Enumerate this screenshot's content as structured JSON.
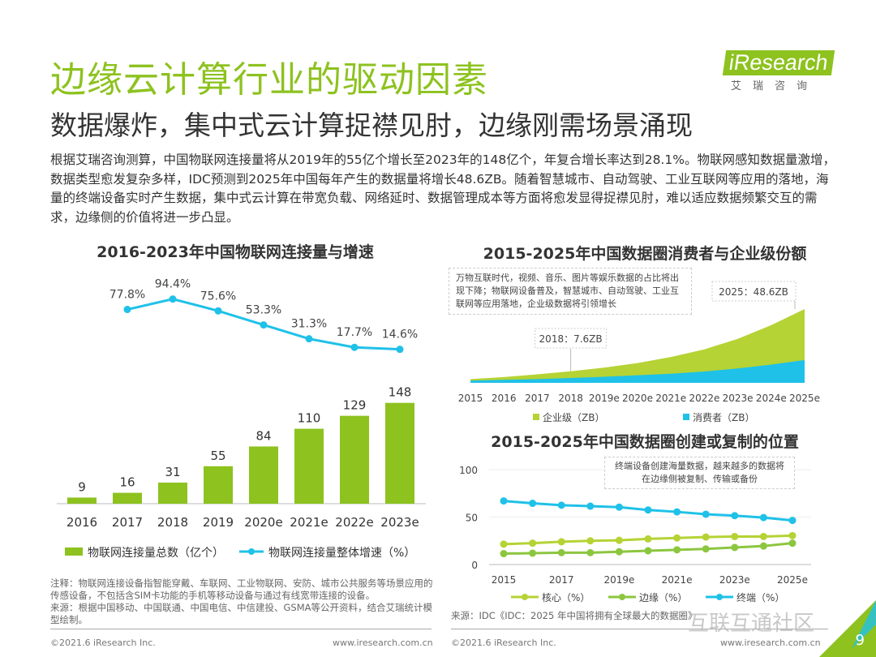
{
  "header": {
    "title": "边缘云计算行业的驱动因素",
    "subtitle": "数据爆炸，集中式云计算捉襟见肘，边缘刚需场景涌现"
  },
  "logo": {
    "main": "iResearch",
    "sub": "艾瑞咨询"
  },
  "paragraph": "根据艾瑞咨询测算，中国物联网连接量将从2019年的55亿个增长至2023年的148亿个，年复合增长率达到28.1%。物联网感知数据量激增，数据类型愈发复杂多样，IDC预测到2025年中国每年产生的数据量将增长48.6ZB。随着智慧城市、自动驾驶、工业互联网等应用的落地，海量的终端设备实时产生数据，集中式云计算在带宽负载、网络延时、数据管理成本等方面将愈发显得捉襟见肘，难以适应数据频繁交互的需求，边缘侧的价值将进一步凸显。",
  "colors": {
    "green": "#8dc21f",
    "lightgreen": "#b5d334",
    "cyan": "#1fc1e8",
    "midgreen": "#8cc63f"
  },
  "chart_data": [
    {
      "type": "bar",
      "title": "2016-2023年中国物联网连接量与增速",
      "categories": [
        "2016",
        "2017",
        "2018",
        "2019",
        "2020e",
        "2021e",
        "2022e",
        "2023e"
      ],
      "series": [
        {
          "name": "物联网连接量总数（亿个）",
          "type": "bar",
          "values": [
            9,
            16,
            31,
            55,
            84,
            110,
            129,
            148
          ]
        },
        {
          "name": "物联网连接量整体增速（%）",
          "type": "line",
          "values": [
            null,
            77.8,
            94.4,
            75.6,
            53.3,
            31.3,
            17.7,
            14.6
          ],
          "labels": [
            "",
            "77.8%",
            "94.4%",
            "75.6%",
            "53.3%",
            "31.3%",
            "17.7%",
            "14.6%"
          ]
        }
      ],
      "legend": "bottom"
    },
    {
      "type": "area",
      "title": "2015-2025年中国数据圈消费者与企业级份额",
      "categories": [
        "2015",
        "2016",
        "2017",
        "2018",
        "2019e",
        "2020e",
        "2021e",
        "2022e",
        "2023e",
        "2024e",
        "2025e"
      ],
      "series": [
        {
          "name": "企业级（ZB）",
          "values": [
            1.0,
            1.8,
            3.1,
            4.4,
            6.0,
            8.0,
            11.0,
            14.5,
            19.5,
            26.0,
            33.6
          ]
        },
        {
          "name": "消费者（ZB）",
          "values": [
            1.5,
            2.0,
            2.5,
            3.2,
            4.0,
            5.0,
            6.0,
            7.5,
            9.5,
            12.0,
            15.0
          ]
        }
      ],
      "stacked": true,
      "annotations": [
        "2018：7.6ZB",
        "2025：48.6ZB"
      ],
      "note": "万物互联时代，视频、音乐、图片等娱乐数据的占比将出现下降；物联网设备普及，智慧城市、自动驾驶、工业互联网等应用落地，企业级数据将引领增长",
      "legend": "bottom"
    },
    {
      "type": "line",
      "title": "2015-2025年中国数据圈创建或复制的位置",
      "categories": [
        "2015",
        "2016",
        "2017",
        "2018",
        "2019e",
        "2020e",
        "2021e",
        "2022e",
        "2023e",
        "2024e",
        "2025e"
      ],
      "tick_labels": [
        "2015",
        "2017",
        "2019e",
        "2021e",
        "2023e",
        "2025e"
      ],
      "yticks": [
        0,
        50,
        100
      ],
      "ylim": [
        0,
        100
      ],
      "series": [
        {
          "name": "核心（%）",
          "values": [
            21.5,
            22.5,
            24,
            25,
            25.5,
            27,
            28,
            29,
            29.5,
            29.5,
            30.5
          ]
        },
        {
          "name": "边缘（%）",
          "values": [
            11.5,
            12,
            12.5,
            12.5,
            13.5,
            14.5,
            15.5,
            16.5,
            18,
            19.5,
            22.5
          ]
        },
        {
          "name": "终端（%）",
          "values": [
            67,
            64.5,
            62.5,
            61.5,
            60.5,
            57.5,
            55.5,
            53,
            51.5,
            49.5,
            46.5
          ]
        }
      ],
      "note": "终端设备创建海量数据，越来越多的数据将在边缘侧被复制、传输或备份",
      "legend": "bottom",
      "grid": true
    }
  ],
  "notes": {
    "left": "注释：物联网连接设备指智能穿戴、车联网、工业物联网、安防、城市公共服务等场景应用的传感设备，不包括含SIM卡功能的手机等移动设备与通过有线宽带连接的设备。",
    "left_source": "来源：根据中国移动、中国联通、中国电信、中信建投、GSMA等公开资料，结合艾瑞统计模型绘制。",
    "right_source": "来源：IDC《IDC：2025 年中国将拥有全球最大的数据圈》"
  },
  "footer": {
    "copyright": "©2021.6 iResearch Inc.",
    "url": "www.iresearch.com.cn",
    "page": "9"
  },
  "watermark": "互联互通社区"
}
